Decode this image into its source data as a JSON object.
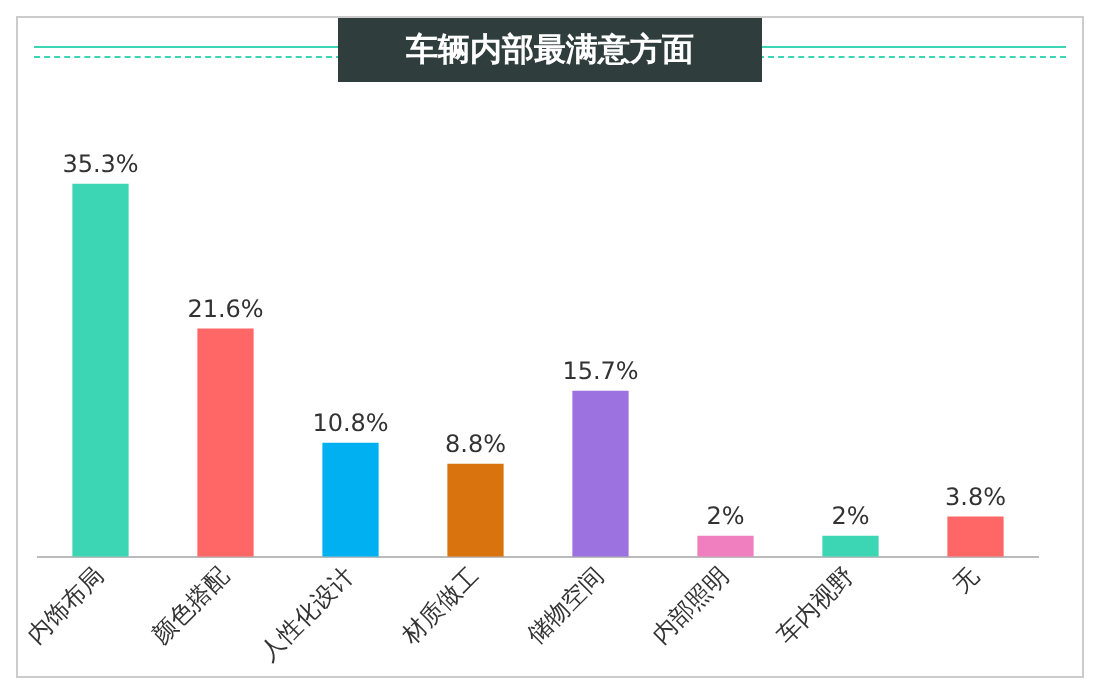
{
  "chart_data": {
    "type": "bar",
    "title": "车辆内部最满意方面",
    "categories": [
      "内饰布局",
      "颜色搭配",
      "人性化设计",
      "材质做工",
      "储物空间",
      "内部照明",
      "车内视野",
      "无"
    ],
    "values": [
      35.3,
      21.6,
      10.8,
      8.8,
      15.7,
      2,
      2,
      3.8
    ],
    "value_labels": [
      "35.3%",
      "21.6%",
      "10.8%",
      "8.8%",
      "15.7%",
      "2%",
      "2%",
      "3.8%"
    ],
    "colors": [
      "#3dd6b5",
      "#ff6666",
      "#00b0f0",
      "#d9730d",
      "#9b72e0",
      "#f07fc0",
      "#3dd6b5",
      "#ff6666"
    ],
    "grid": false,
    "legend": false
  }
}
